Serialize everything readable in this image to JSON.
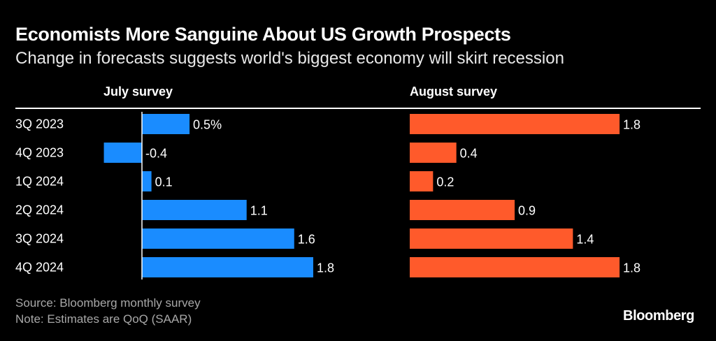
{
  "header": {
    "title": "Economists More Sanguine About US Growth Prospects",
    "subtitle": "Change in forecasts suggests world's biggest economy will skirt recession"
  },
  "chart_data": {
    "type": "bar",
    "orientation": "horizontal",
    "categories": [
      "3Q 2023",
      "4Q 2023",
      "1Q 2024",
      "2Q 2024",
      "3Q 2024",
      "4Q 2024"
    ],
    "panels": [
      {
        "title": "July survey",
        "color": "#1a8cff",
        "values": [
          0.5,
          -0.4,
          0.1,
          1.1,
          1.6,
          1.8
        ],
        "labels": [
          "0.5%",
          "-0.4",
          "0.1",
          "1.1",
          "1.6",
          "1.8"
        ],
        "xlim": [
          -0.4,
          1.8
        ]
      },
      {
        "title": "August survey",
        "color": "#ff5a2b",
        "values": [
          1.8,
          0.4,
          0.2,
          0.9,
          1.4,
          1.8
        ],
        "labels": [
          "1.8",
          "0.4",
          "0.2",
          "0.9",
          "1.4",
          "1.8"
        ],
        "xlim": [
          0,
          1.8
        ]
      }
    ],
    "grid": false,
    "legend": "none"
  },
  "footer": {
    "source": "Source: Bloomberg monthly survey",
    "note": "Note: Estimates are QoQ (SAAR)",
    "brand": "Bloomberg"
  }
}
